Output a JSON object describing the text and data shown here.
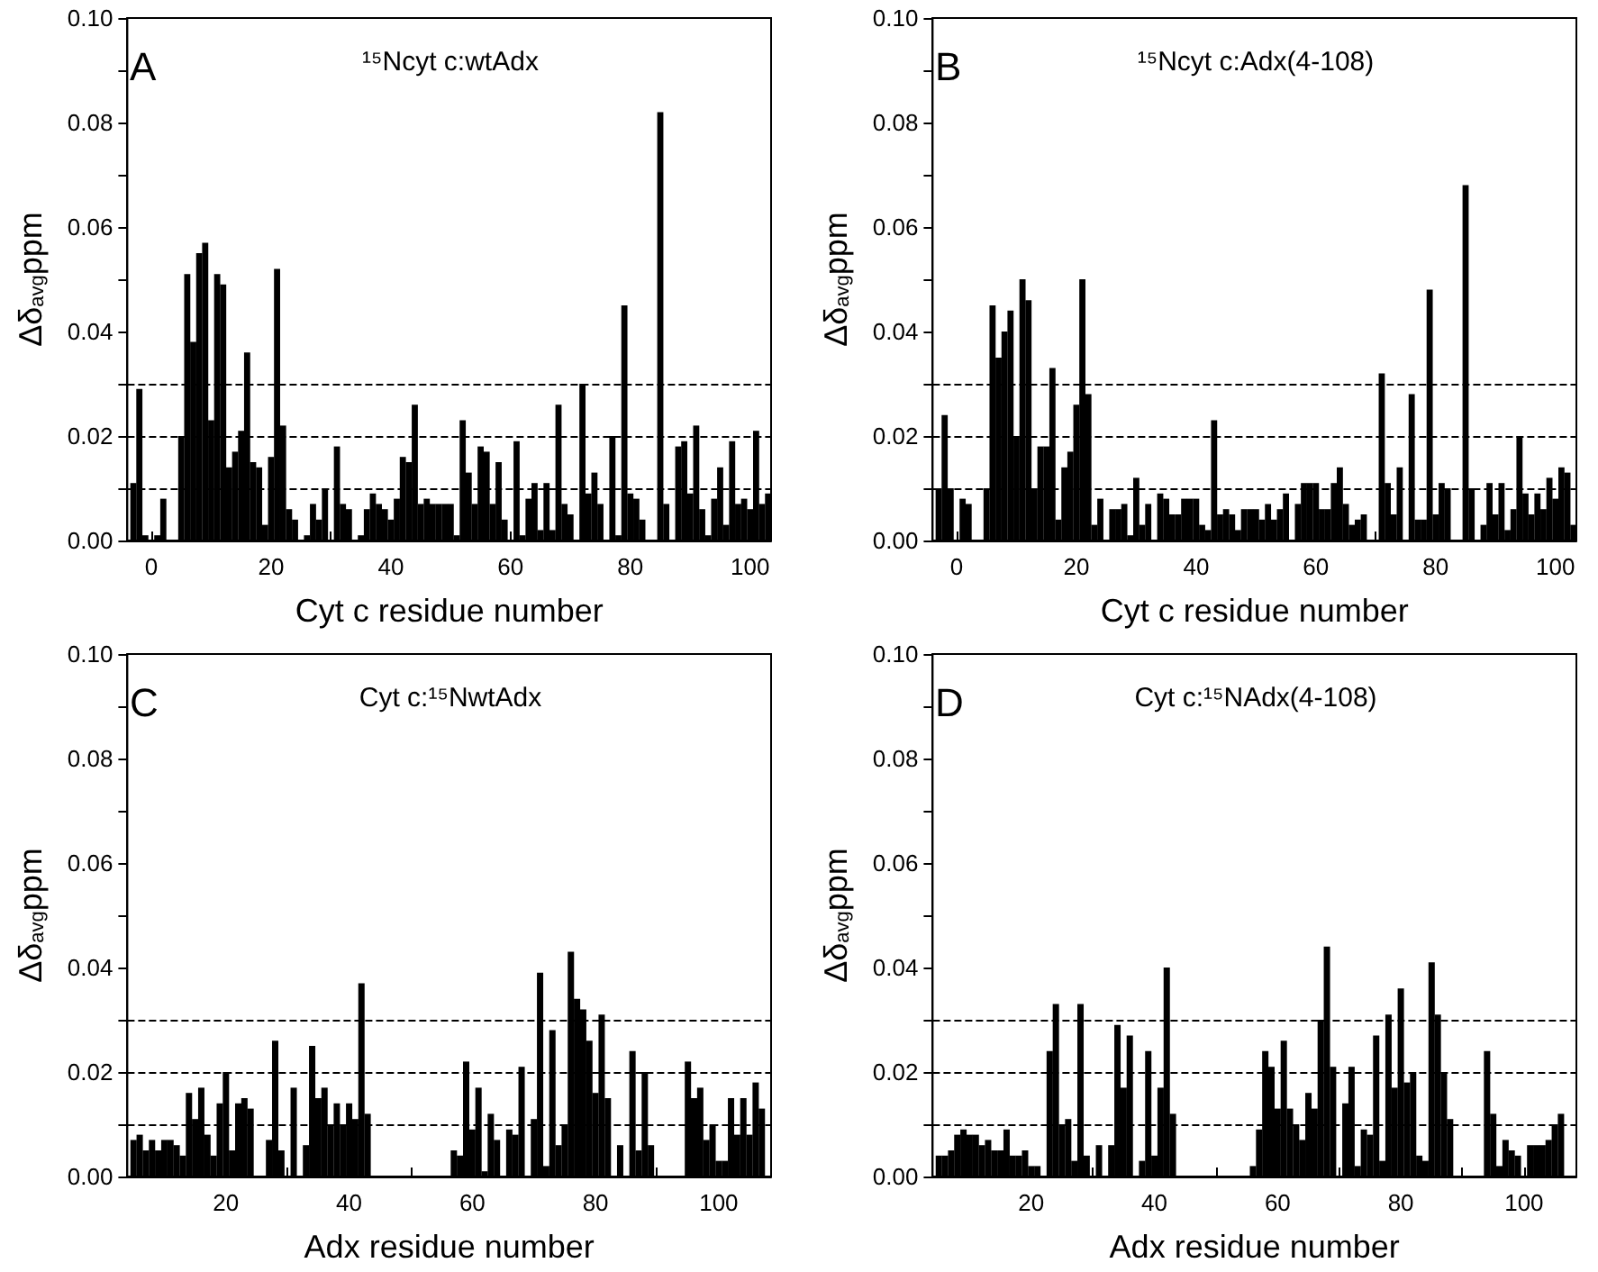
{
  "chart_data": [
    {
      "type": "bar",
      "title": "¹⁵Ncyt c:wtAdx",
      "annotations": [
        "A"
      ],
      "xlabel": "Cyt c residue number",
      "ylabel": "Δδ$_{avg}$ppm",
      "color": "#000000",
      "x": [
        -3,
        -2,
        -1,
        0,
        1,
        2,
        3,
        4,
        5,
        6,
        7,
        8,
        9,
        10,
        11,
        12,
        13,
        14,
        15,
        16,
        17,
        18,
        19,
        20,
        21,
        22,
        23,
        24,
        25,
        26,
        27,
        28,
        29,
        30,
        31,
        32,
        33,
        34,
        35,
        36,
        37,
        38,
        39,
        40,
        41,
        42,
        43,
        44,
        45,
        46,
        47,
        48,
        49,
        50,
        51,
        52,
        53,
        54,
        55,
        56,
        57,
        58,
        59,
        60,
        61,
        62,
        63,
        64,
        65,
        66,
        67,
        68,
        69,
        70,
        71,
        72,
        73,
        74,
        75,
        76,
        77,
        78,
        79,
        80,
        81,
        82,
        83,
        84,
        85,
        86,
        87,
        88,
        89,
        90,
        91,
        92,
        93,
        94,
        95,
        96,
        97,
        98,
        99,
        100,
        101,
        102,
        103
      ],
      "values": [
        0.011,
        0.029,
        0.001,
        0,
        0.001,
        0.008,
        0,
        0,
        0.02,
        0.051,
        0.038,
        0.055,
        0.057,
        0.023,
        0.051,
        0.049,
        0.014,
        0.017,
        0.021,
        0.036,
        0.015,
        0.014,
        0.003,
        0.016,
        0.052,
        0.022,
        0.006,
        0.004,
        0,
        0.001,
        0.007,
        0.004,
        0.01,
        0,
        0.018,
        0.007,
        0.006,
        0,
        0.001,
        0.006,
        0.009,
        0.007,
        0.006,
        0.004,
        0.008,
        0.016,
        0.015,
        0.026,
        0.007,
        0.008,
        0.007,
        0.007,
        0.007,
        0.007,
        0.001,
        0.023,
        0.013,
        0.007,
        0.018,
        0.017,
        0.007,
        0.015,
        0.004,
        0,
        0.019,
        0.001,
        0.008,
        0.011,
        0.002,
        0.011,
        0.002,
        0.026,
        0.007,
        0.005,
        0,
        0.03,
        0.009,
        0.013,
        0.007,
        0,
        0.02,
        0.001,
        0.045,
        0.009,
        0.008,
        0.004,
        0,
        0,
        0.082,
        0.007,
        0,
        0.018,
        0.019,
        0.009,
        0.022,
        0.006,
        0.001,
        0.008,
        0.014,
        0.003,
        0.019,
        0.007,
        0.008,
        0.006,
        0.021,
        0.007,
        0.009
      ],
      "xlim": [
        -4,
        103.5
      ],
      "xticks": [
        0,
        {
          "value": 10,
          "label": null
        },
        20,
        {
          "value": 30,
          "label": null
        },
        40,
        {
          "value": 50,
          "label": null
        },
        60,
        {
          "value": 70,
          "label": null
        },
        80,
        {
          "value": 90,
          "label": null
        },
        100
      ],
      "ylim": [
        0,
        0.1
      ],
      "yticks": [
        {
          "value": 0,
          "label": "0.00"
        },
        {
          "value": 0.01,
          "label": null
        },
        {
          "value": 0.02,
          "label": "0.02"
        },
        {
          "value": 0.03,
          "label": null
        },
        {
          "value": 0.04,
          "label": "0.04"
        },
        {
          "value": 0.05,
          "label": null
        },
        {
          "value": 0.06,
          "label": "0.06"
        },
        {
          "value": 0.07,
          "label": null
        },
        {
          "value": 0.08,
          "label": "0.08"
        },
        {
          "value": 0.09,
          "label": null
        },
        {
          "value": 0.1,
          "label": "0.10"
        }
      ],
      "ref_lines": [
        {
          "axis": "y",
          "value": 0.01,
          "color": "#000000",
          "line_style": "dashed"
        },
        {
          "axis": "y",
          "value": 0.02,
          "color": "#000000",
          "line_style": "dashed"
        },
        {
          "axis": "y",
          "value": 0.03,
          "color": "#000000",
          "line_style": "dashed"
        }
      ]
    },
    {
      "type": "bar",
      "title": "¹⁵Ncyt c:Adx(4-108)",
      "annotations": [
        "B"
      ],
      "xlabel": "Cyt c residue number",
      "ylabel": "Δδ$_{avg}$ppm",
      "color": "#000000",
      "x": [
        -3,
        -2,
        -1,
        0,
        1,
        2,
        3,
        4,
        5,
        6,
        7,
        8,
        9,
        10,
        11,
        12,
        13,
        14,
        15,
        16,
        17,
        18,
        19,
        20,
        21,
        22,
        23,
        24,
        25,
        26,
        27,
        28,
        29,
        30,
        31,
        32,
        33,
        34,
        35,
        36,
        37,
        38,
        39,
        40,
        41,
        42,
        43,
        44,
        45,
        46,
        47,
        48,
        49,
        50,
        51,
        52,
        53,
        54,
        55,
        56,
        57,
        58,
        59,
        60,
        61,
        62,
        63,
        64,
        65,
        66,
        67,
        68,
        69,
        70,
        71,
        72,
        73,
        74,
        75,
        76,
        77,
        78,
        79,
        80,
        81,
        82,
        83,
        84,
        85,
        86,
        87,
        88,
        89,
        90,
        91,
        92,
        93,
        94,
        95,
        96,
        97,
        98,
        99,
        100,
        101,
        102,
        103
      ],
      "values": [
        0.01,
        0.024,
        0.01,
        0,
        0.008,
        0.007,
        0,
        0,
        0.01,
        0.045,
        0.035,
        0.04,
        0.044,
        0.02,
        0.05,
        0.046,
        0.01,
        0.018,
        0.018,
        0.033,
        0.004,
        0.014,
        0.017,
        0.026,
        0.05,
        0.028,
        0.003,
        0.008,
        0,
        0.006,
        0.006,
        0.007,
        0.001,
        0.012,
        0.003,
        0.007,
        0,
        0.009,
        0.008,
        0.005,
        0.005,
        0.008,
        0.008,
        0.008,
        0.003,
        0.002,
        0.023,
        0.005,
        0.006,
        0.005,
        0.002,
        0.006,
        0.006,
        0.006,
        0.004,
        0.007,
        0.004,
        0.006,
        0.009,
        0,
        0.007,
        0.011,
        0.011,
        0.011,
        0.006,
        0.006,
        0.011,
        0.014,
        0.007,
        0.003,
        0.004,
        0.005,
        0,
        0,
        0.032,
        0.011,
        0.005,
        0.014,
        0,
        0.028,
        0.004,
        0.004,
        0.048,
        0.005,
        0.011,
        0.01,
        0,
        0,
        0.068,
        0.01,
        0,
        0.003,
        0.011,
        0.005,
        0.011,
        0.002,
        0.006,
        0.02,
        0.009,
        0.005,
        0.009,
        0.006,
        0.012,
        0.008,
        0.014,
        0.013,
        0.003
      ],
      "xlim": [
        -4,
        103.5
      ],
      "xticks": [
        0,
        {
          "value": 10,
          "label": null
        },
        20,
        {
          "value": 30,
          "label": null
        },
        40,
        {
          "value": 50,
          "label": null
        },
        60,
        {
          "value": 70,
          "label": null
        },
        80,
        {
          "value": 90,
          "label": null
        },
        100
      ],
      "ylim": [
        0,
        0.1
      ],
      "yticks": [
        {
          "value": 0,
          "label": "0.00"
        },
        {
          "value": 0.01,
          "label": null
        },
        {
          "value": 0.02,
          "label": "0.02"
        },
        {
          "value": 0.03,
          "label": null
        },
        {
          "value": 0.04,
          "label": "0.04"
        },
        {
          "value": 0.05,
          "label": null
        },
        {
          "value": 0.06,
          "label": "0.06"
        },
        {
          "value": 0.07,
          "label": null
        },
        {
          "value": 0.08,
          "label": "0.08"
        },
        {
          "value": 0.09,
          "label": null
        },
        {
          "value": 0.1,
          "label": "0.10"
        }
      ],
      "ref_lines": [
        {
          "axis": "y",
          "value": 0.01,
          "color": "#000000",
          "line_style": "dashed"
        },
        {
          "axis": "y",
          "value": 0.02,
          "color": "#000000",
          "line_style": "dashed"
        },
        {
          "axis": "y",
          "value": 0.03,
          "color": "#000000",
          "line_style": "dashed"
        }
      ]
    },
    {
      "type": "bar",
      "title": "Cyt c:¹⁵NwtAdx",
      "annotations": [
        "C"
      ],
      "xlabel": "Adx residue number",
      "ylabel": "Δδ$_{avg}$ppm",
      "color": "#000000",
      "x": [
        5,
        6,
        7,
        8,
        9,
        10,
        11,
        12,
        13,
        14,
        15,
        16,
        17,
        18,
        19,
        20,
        21,
        22,
        23,
        24,
        25,
        26,
        27,
        28,
        29,
        30,
        31,
        32,
        33,
        34,
        35,
        36,
        37,
        38,
        39,
        40,
        41,
        42,
        43,
        44,
        45,
        46,
        47,
        48,
        49,
        50,
        51,
        52,
        53,
        54,
        55,
        56,
        57,
        58,
        59,
        60,
        61,
        62,
        63,
        64,
        65,
        66,
        67,
        68,
        69,
        70,
        71,
        72,
        73,
        74,
        75,
        76,
        77,
        78,
        79,
        80,
        81,
        82,
        83,
        84,
        85,
        86,
        87,
        88,
        89,
        90,
        91,
        92,
        93,
        94,
        95,
        96,
        97,
        98,
        99,
        100,
        101,
        102,
        103,
        104,
        105,
        106,
        107
      ],
      "values": [
        0.007,
        0.008,
        0.005,
        0.007,
        0.005,
        0.007,
        0.007,
        0.006,
        0.004,
        0.016,
        0.011,
        0.017,
        0.008,
        0.004,
        0.014,
        0.02,
        0.005,
        0.014,
        0.015,
        0.013,
        null,
        null,
        0.007,
        0.026,
        0.005,
        null,
        0.017,
        null,
        0.006,
        0.025,
        0.015,
        0.017,
        0.01,
        0.014,
        0.01,
        0.014,
        0.011,
        0.037,
        0.012,
        null,
        null,
        null,
        null,
        null,
        null,
        null,
        null,
        null,
        null,
        null,
        null,
        null,
        0.005,
        0.004,
        0.022,
        0.009,
        0.017,
        0.001,
        0.012,
        0.007,
        null,
        0.009,
        0.008,
        0.021,
        null,
        0.011,
        0.039,
        0.002,
        0.028,
        0.006,
        0.01,
        0.043,
        0.034,
        0.032,
        0.026,
        0.016,
        0.031,
        0.015,
        null,
        0.006,
        null,
        0.024,
        0.005,
        0.02,
        0.006,
        null,
        null,
        null,
        null,
        null,
        0.022,
        0.015,
        0.017,
        0.007,
        0.01,
        0.003,
        0.003,
        0.015,
        0.008,
        0.015,
        0.008,
        0.018,
        0.013
      ],
      "xlim": [
        4,
        108.5
      ],
      "xticks": [
        {
          "value": 10,
          "label": null
        },
        20,
        {
          "value": 30,
          "label": null
        },
        40,
        {
          "value": 50,
          "label": null
        },
        60,
        {
          "value": 70,
          "label": null
        },
        80,
        {
          "value": 90,
          "label": null
        },
        100
      ],
      "ylim": [
        0,
        0.1
      ],
      "yticks": [
        {
          "value": 0,
          "label": "0.00"
        },
        {
          "value": 0.01,
          "label": null
        },
        {
          "value": 0.02,
          "label": "0.02"
        },
        {
          "value": 0.03,
          "label": null
        },
        {
          "value": 0.04,
          "label": "0.04"
        },
        {
          "value": 0.05,
          "label": null
        },
        {
          "value": 0.06,
          "label": "0.06"
        },
        {
          "value": 0.07,
          "label": null
        },
        {
          "value": 0.08,
          "label": "0.08"
        },
        {
          "value": 0.09,
          "label": null
        },
        {
          "value": 0.1,
          "label": "0.10"
        }
      ],
      "ref_lines": [
        {
          "axis": "y",
          "value": 0.01,
          "color": "#000000",
          "line_style": "dashed"
        },
        {
          "axis": "y",
          "value": 0.02,
          "color": "#000000",
          "line_style": "dashed"
        },
        {
          "axis": "y",
          "value": 0.03,
          "color": "#000000",
          "line_style": "dashed"
        }
      ]
    },
    {
      "type": "bar",
      "title": "Cyt c:¹⁵NAdx(4-108)",
      "annotations": [
        "D"
      ],
      "xlabel": "Adx residue number",
      "ylabel": "Δδ$_{avg}$ppm",
      "color": "#000000",
      "x": [
        5,
        6,
        7,
        8,
        9,
        10,
        11,
        12,
        13,
        14,
        15,
        16,
        17,
        18,
        19,
        20,
        21,
        22,
        23,
        24,
        25,
        26,
        27,
        28,
        29,
        30,
        31,
        32,
        33,
        34,
        35,
        36,
        37,
        38,
        39,
        40,
        41,
        42,
        43,
        44,
        45,
        46,
        47,
        48,
        49,
        50,
        51,
        52,
        53,
        54,
        55,
        56,
        57,
        58,
        59,
        60,
        61,
        62,
        63,
        64,
        65,
        66,
        67,
        68,
        69,
        70,
        71,
        72,
        73,
        74,
        75,
        76,
        77,
        78,
        79,
        80,
        81,
        82,
        83,
        84,
        85,
        86,
        87,
        88,
        89,
        90,
        91,
        92,
        93,
        94,
        95,
        96,
        97,
        98,
        99,
        100,
        101,
        102,
        103,
        104,
        105,
        106
      ],
      "values": [
        0.004,
        0.004,
        0.005,
        0.008,
        0.009,
        0.008,
        0.008,
        0.006,
        0.007,
        0.005,
        0.005,
        0.009,
        0.004,
        0.004,
        0.005,
        0.002,
        0.002,
        null,
        0.024,
        0.033,
        0.01,
        0.011,
        0.003,
        0.033,
        0.004,
        null,
        0.006,
        null,
        0.006,
        0.029,
        0.017,
        0.027,
        null,
        0.003,
        0.024,
        0.004,
        0.017,
        0.04,
        0.012,
        null,
        null,
        null,
        null,
        null,
        null,
        null,
        null,
        null,
        null,
        null,
        null,
        0.002,
        0.009,
        0.024,
        0.021,
        0.013,
        0.026,
        0.013,
        0.01,
        0.007,
        0.016,
        0.013,
        0.03,
        0.044,
        0.021,
        null,
        0.014,
        0.021,
        0.002,
        0.009,
        0.008,
        0.027,
        0.003,
        0.031,
        0.017,
        0.036,
        0.018,
        0.02,
        0.004,
        0.003,
        0.041,
        0.031,
        0.02,
        0.011,
        null,
        null,
        null,
        null,
        null,
        0.024,
        0.012,
        0.002,
        0.007,
        0.005,
        0.004,
        null,
        0.006,
        0.006,
        0.006,
        0.007,
        0.01,
        0.012
      ],
      "xlim": [
        4,
        108.5
      ],
      "xticks": [
        {
          "value": 10,
          "label": null
        },
        20,
        {
          "value": 30,
          "label": null
        },
        40,
        {
          "value": 50,
          "label": null
        },
        60,
        {
          "value": 70,
          "label": null
        },
        80,
        {
          "value": 90,
          "label": null
        },
        100
      ],
      "ylim": [
        0,
        0.1
      ],
      "yticks": [
        {
          "value": 0,
          "label": "0.00"
        },
        {
          "value": 0.01,
          "label": null
        },
        {
          "value": 0.02,
          "label": "0.02"
        },
        {
          "value": 0.03,
          "label": null
        },
        {
          "value": 0.04,
          "label": "0.04"
        },
        {
          "value": 0.05,
          "label": null
        },
        {
          "value": 0.06,
          "label": "0.06"
        },
        {
          "value": 0.07,
          "label": null
        },
        {
          "value": 0.08,
          "label": "0.08"
        },
        {
          "value": 0.09,
          "label": null
        },
        {
          "value": 0.1,
          "label": "0.10"
        }
      ],
      "ref_lines": [
        {
          "axis": "y",
          "value": 0.01,
          "color": "#000000",
          "line_style": "dashed"
        },
        {
          "axis": "y",
          "value": 0.02,
          "color": "#000000",
          "line_style": "dashed"
        },
        {
          "axis": "y",
          "value": 0.03,
          "color": "#000000",
          "line_style": "dashed"
        }
      ]
    }
  ]
}
